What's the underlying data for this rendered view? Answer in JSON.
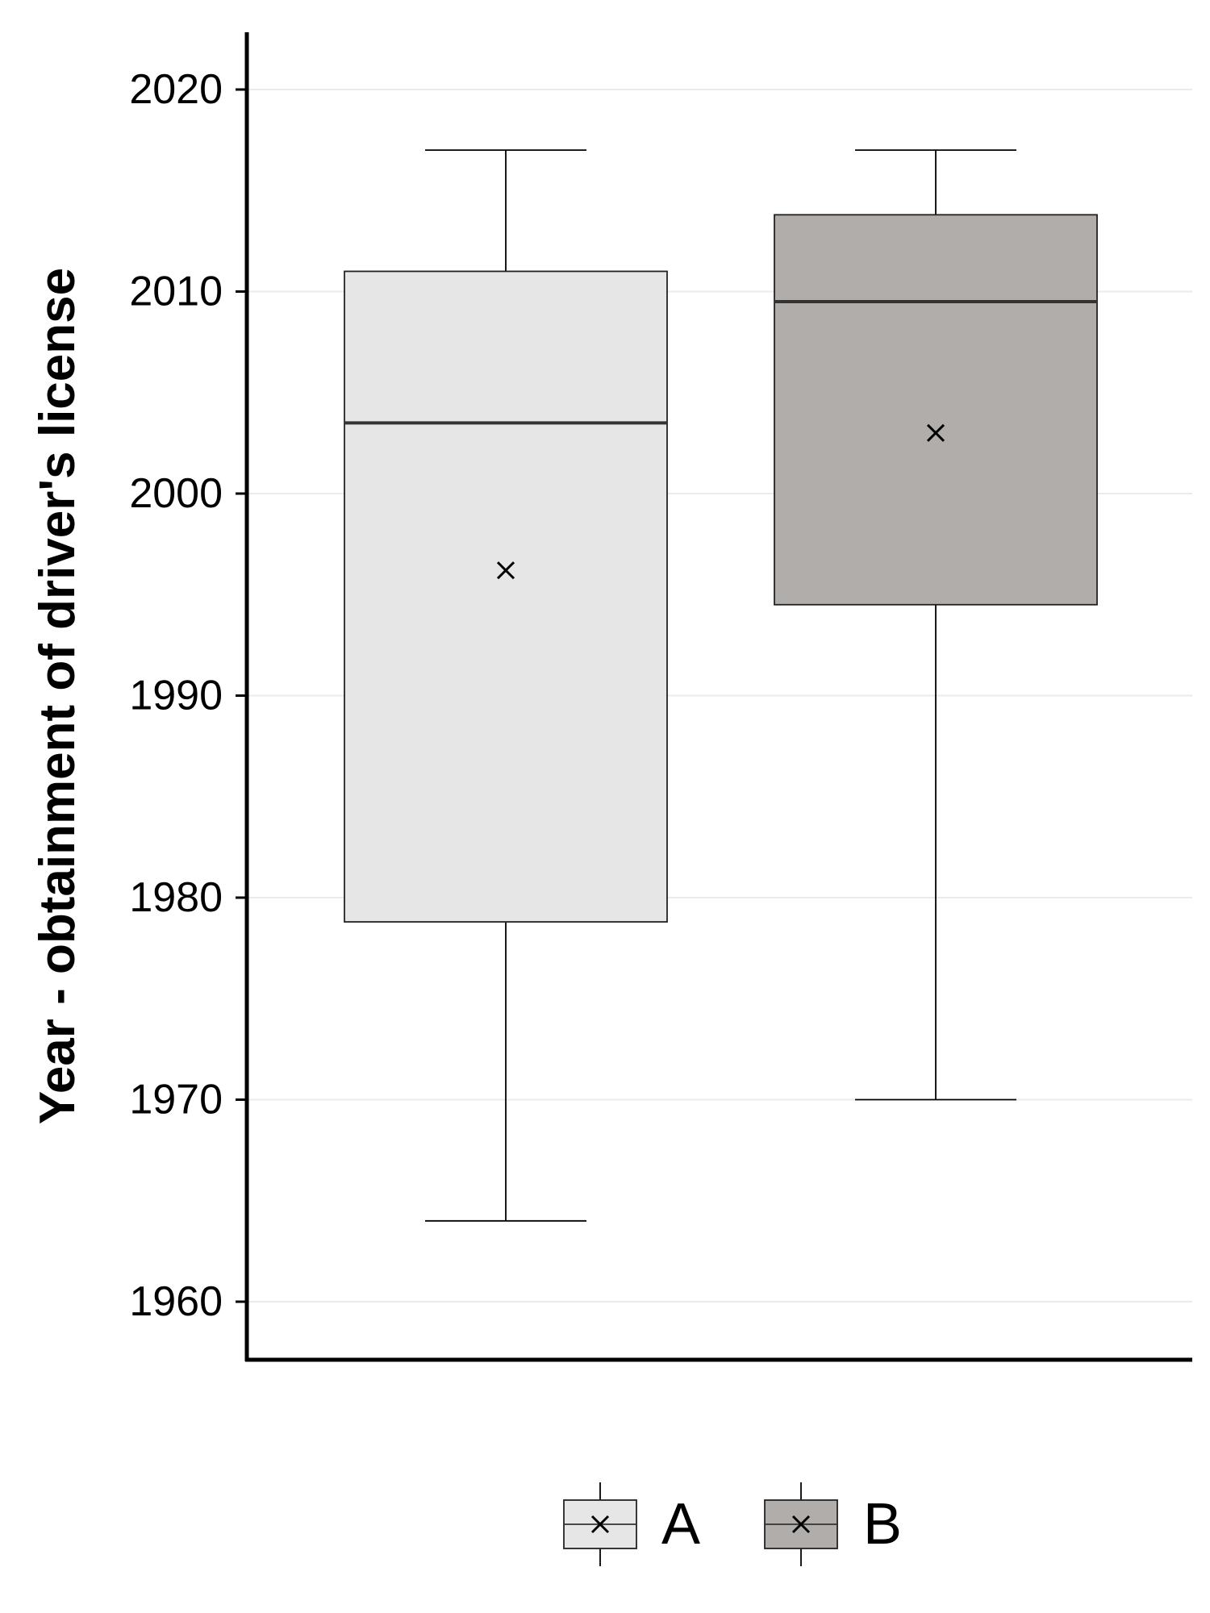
{
  "chart_data": {
    "type": "boxplot",
    "title": "",
    "xlabel": "",
    "ylabel": "Year - obtainment of driver's license",
    "ylim": [
      1957,
      2023
    ],
    "yticks": [
      1960,
      1970,
      1980,
      1990,
      2000,
      2010,
      2020
    ],
    "grid": "horizontal",
    "legend_position": "bottom",
    "series": [
      {
        "name": "A",
        "color": "#e6e6e6",
        "min": 1964,
        "q1": 1978.8,
        "median": 2003.5,
        "q3": 2011,
        "max": 2017,
        "mean": 1996.2
      },
      {
        "name": "B",
        "color": "#b0adab",
        "min": 1970,
        "q1": 1994.5,
        "median": 2009.5,
        "q3": 2013.8,
        "max": 2017,
        "mean": 2003
      }
    ]
  }
}
